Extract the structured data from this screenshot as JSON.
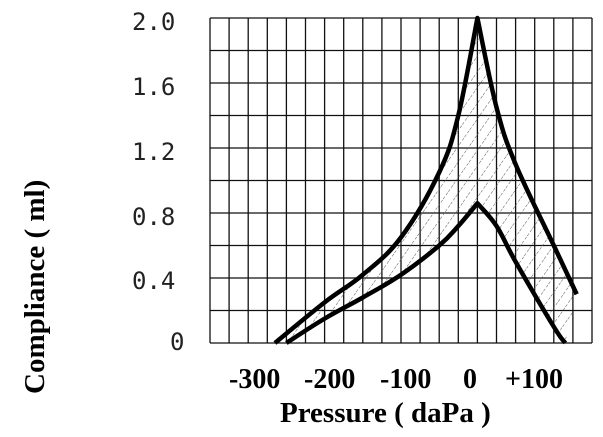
{
  "chart_data": {
    "type": "area",
    "title": "",
    "xlabel": "Pressure ( daPa )",
    "ylabel": "Compliance ( ml)",
    "xlim": [
      -350,
      150
    ],
    "ylim": [
      0,
      2.0
    ],
    "grid": true,
    "y_ticks": [
      "2.0",
      "1.6",
      "1.2",
      "0.8",
      "0.4",
      "0"
    ],
    "x_ticks": [
      "-300",
      "-200",
      "-100",
      "0",
      "+100"
    ],
    "colors": {
      "line": "#000000",
      "grid": "#111111",
      "hatch": "#555555"
    },
    "series": [
      {
        "x": [
          -265,
          -200,
          -150,
          -100,
          -50,
          -25,
          0,
          25,
          50,
          100,
          130
        ],
        "y": [
          0.0,
          0.25,
          0.42,
          0.65,
          1.05,
          1.4,
          2.0,
          1.45,
          1.1,
          0.6,
          0.3
        ]
      },
      {
        "x": [
          -250,
          -200,
          -150,
          -100,
          -50,
          -25,
          0,
          25,
          50,
          100,
          115
        ],
        "y": [
          0.0,
          0.15,
          0.28,
          0.42,
          0.6,
          0.72,
          0.86,
          0.72,
          0.5,
          0.1,
          0.0
        ]
      }
    ]
  }
}
